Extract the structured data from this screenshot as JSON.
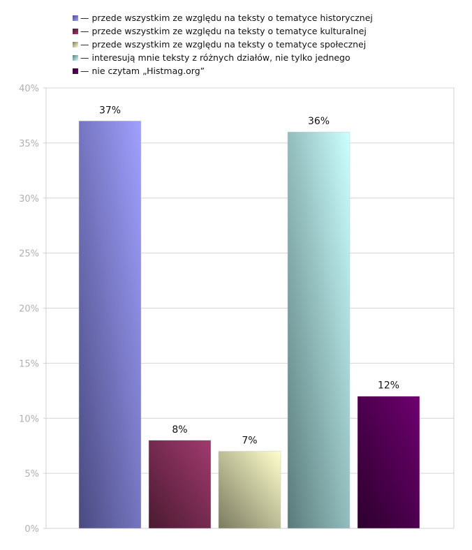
{
  "chart_data": {
    "type": "bar",
    "categories": [
      "— przede wszystkim ze względu na teksty o tematyce historycznej",
      "— przede wszystkim ze względu na teksty o tematyce kulturalnej",
      "— przede wszystkim ze względu na teksty o tematyce społecznej",
      "— interesują mnie teksty z różnych działów, nie tylko jednego",
      "— nie czytam „Histmag.org”"
    ],
    "values": [
      37,
      8,
      7,
      36,
      12
    ],
    "data_labels": [
      "37%",
      "8%",
      "7%",
      "36%",
      "12%"
    ],
    "ylim": [
      0,
      40
    ],
    "yticks": [
      0,
      5,
      10,
      15,
      20,
      25,
      30,
      35,
      40
    ],
    "ytick_labels": [
      "0%",
      "5%",
      "10%",
      "15%",
      "20%",
      "25%",
      "30%",
      "35%",
      "40%"
    ],
    "grid": true,
    "legend_position": "top",
    "colors": [
      {
        "light": "#a0a0ff",
        "dark": "#4a4a80"
      },
      {
        "light": "#a03a6e",
        "dark": "#4a1a30"
      },
      {
        "light": "#ffffcc",
        "dark": "#7a7a60"
      },
      {
        "light": "#ccffff",
        "dark": "#5a7a7a"
      },
      {
        "light": "#6e0070",
        "dark": "#2c002c"
      }
    ],
    "title": "",
    "xlabel": "",
    "ylabel": ""
  }
}
